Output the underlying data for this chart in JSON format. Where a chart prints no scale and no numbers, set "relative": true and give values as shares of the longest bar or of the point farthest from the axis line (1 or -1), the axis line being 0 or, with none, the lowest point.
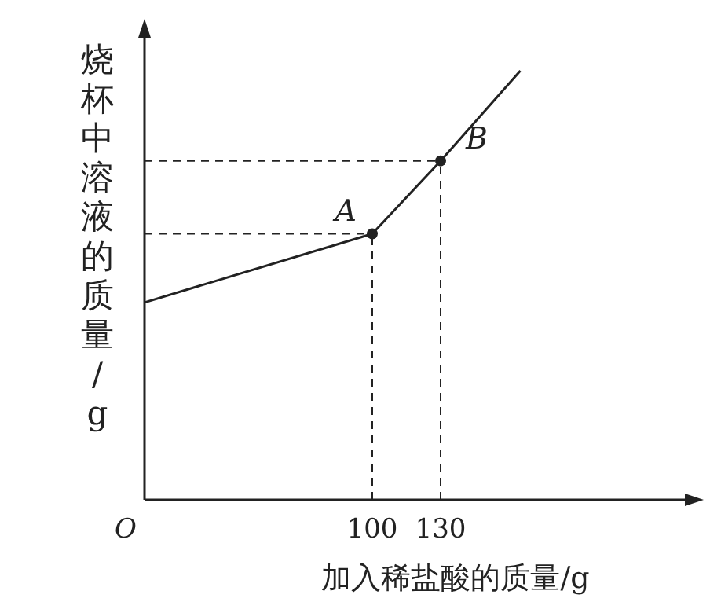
{
  "chart_data": {
    "type": "line",
    "xlabel": "加入稀盐酸的质量/g",
    "ylabel": "烧杯中溶液的质量/g",
    "relative": true,
    "xlim": [
      0,
      240
    ],
    "xticks": [
      {
        "value": 0,
        "label": "O"
      },
      100,
      130
    ],
    "series": [
      {
        "color": "#222222",
        "x": [
          0,
          100,
          130,
          165
        ],
        "values": [
          0.46,
          0.62,
          0.79,
          1
        ]
      },
      {
        "type": "scatter",
        "color": "#222222",
        "marker": "circle",
        "x": [
          100,
          130
        ],
        "values": [
          0.62,
          0.79
        ]
      }
    ],
    "annotations": [
      {
        "text": "A",
        "x": 100,
        "y": 0.62
      },
      {
        "text": "B",
        "x": 130,
        "y": 0.79
      }
    ],
    "ref_lines": [
      {
        "axis": "x",
        "value": 100,
        "line_style": "dashed"
      },
      {
        "axis": "x",
        "value": 130,
        "line_style": "dashed"
      },
      {
        "axis": "y",
        "value": 0.62,
        "line_style": "dashed"
      },
      {
        "axis": "y",
        "value": 0.79,
        "line_style": "dashed"
      }
    ]
  }
}
